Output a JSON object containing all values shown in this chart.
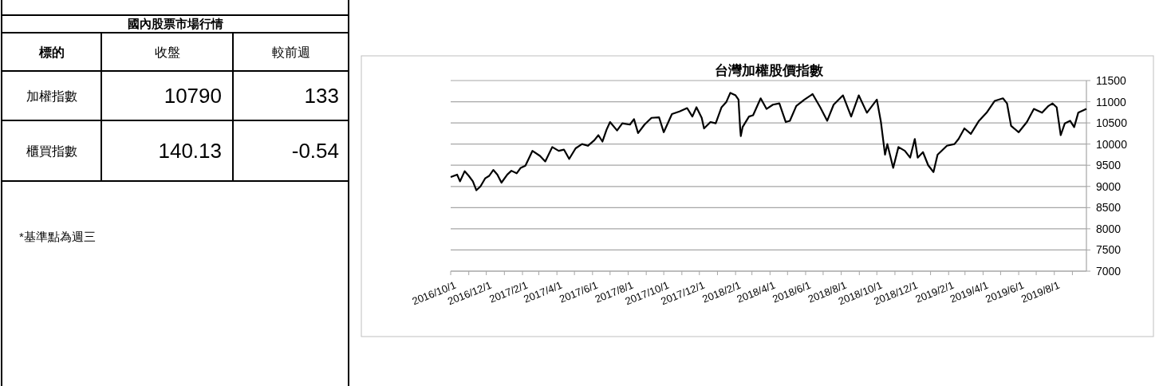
{
  "chart_data": [
    {
      "type": "other",
      "title": "國內股票市場行情",
      "annotations": [
        "標的",
        "收盤",
        "較前週",
        "加權指數",
        "10790",
        "133",
        "櫃買指數",
        "140.13",
        "-0.54",
        "*基準點為週三"
      ]
    },
    {
      "type": "line",
      "title": "台灣加權股價指數",
      "xlim": [
        "2016-10-01",
        "2019-09-25"
      ],
      "ylim": [
        7000,
        11500
      ],
      "yticks": [
        7000,
        7500,
        8000,
        8500,
        9000,
        9500,
        10000,
        10500,
        11000,
        11500
      ],
      "xticks": [
        {
          "value": "2016-10-01",
          "label": "2016/10/1"
        },
        {
          "value": "2016-11-01",
          "label": null
        },
        {
          "value": "2016-12-01",
          "label": "2016/12/1"
        },
        {
          "value": "2017-01-01",
          "label": null
        },
        {
          "value": "2017-02-01",
          "label": "2017/2/1"
        },
        {
          "value": "2017-03-01",
          "label": null
        },
        {
          "value": "2017-04-01",
          "label": "2017/4/1"
        },
        {
          "value": "2017-05-01",
          "label": null
        },
        {
          "value": "2017-06-01",
          "label": "2017/6/1"
        },
        {
          "value": "2017-07-01",
          "label": null
        },
        {
          "value": "2017-08-01",
          "label": "2017/8/1"
        },
        {
          "value": "2017-09-01",
          "label": null
        },
        {
          "value": "2017-10-01",
          "label": "2017/10/1"
        },
        {
          "value": "2017-11-01",
          "label": null
        },
        {
          "value": "2017-12-01",
          "label": "2017/12/1"
        },
        {
          "value": "2018-01-01",
          "label": null
        },
        {
          "value": "2018-02-01",
          "label": "2018/2/1"
        },
        {
          "value": "2018-03-01",
          "label": null
        },
        {
          "value": "2018-04-01",
          "label": "2018/4/1"
        },
        {
          "value": "2018-05-01",
          "label": null
        },
        {
          "value": "2018-06-01",
          "label": "2018/6/1"
        },
        {
          "value": "2018-07-01",
          "label": null
        },
        {
          "value": "2018-08-01",
          "label": "2018/8/1"
        },
        {
          "value": "2018-09-01",
          "label": null
        },
        {
          "value": "2018-10-01",
          "label": "2018/10/1"
        },
        {
          "value": "2018-11-01",
          "label": null
        },
        {
          "value": "2018-12-01",
          "label": "2018/12/1"
        },
        {
          "value": "2019-01-01",
          "label": null
        },
        {
          "value": "2019-02-01",
          "label": "2019/2/1"
        },
        {
          "value": "2019-03-01",
          "label": null
        },
        {
          "value": "2019-04-01",
          "label": "2019/4/1"
        },
        {
          "value": "2019-05-01",
          "label": null
        },
        {
          "value": "2019-06-01",
          "label": "2019/6/1"
        },
        {
          "value": "2019-07-01",
          "label": null
        },
        {
          "value": "2019-08-01",
          "label": "2019/8/1"
        },
        {
          "value": "2019-09-01",
          "label": null
        }
      ],
      "grid": "y",
      "marker": "none",
      "line_style": "solid",
      "x": [
        "2016-10-01",
        "2016-10-12",
        "2016-10-17",
        "2016-10-25",
        "2016-11-01",
        "2016-11-08",
        "2016-11-14",
        "2016-11-21",
        "2016-11-29",
        "2016-12-06",
        "2016-12-13",
        "2016-12-20",
        "2016-12-27",
        "2017-01-06",
        "2017-01-13",
        "2017-01-22",
        "2017-01-29",
        "2017-02-06",
        "2017-02-18",
        "2017-03-03",
        "2017-03-12",
        "2017-03-24",
        "2017-04-04",
        "2017-04-13",
        "2017-04-22",
        "2017-05-03",
        "2017-05-14",
        "2017-05-24",
        "2017-06-04",
        "2017-06-11",
        "2017-06-18",
        "2017-06-25",
        "2017-07-01",
        "2017-07-13",
        "2017-07-22",
        "2017-08-04",
        "2017-08-11",
        "2017-08-18",
        "2017-08-29",
        "2017-09-10",
        "2017-09-23",
        "2017-10-01",
        "2017-10-15",
        "2017-10-28",
        "2017-11-10",
        "2017-11-19",
        "2017-11-26",
        "2017-12-05",
        "2017-12-09",
        "2017-12-20",
        "2017-12-29",
        "2018-01-08",
        "2018-01-16",
        "2018-01-23",
        "2018-02-01",
        "2018-02-06",
        "2018-02-09",
        "2018-02-10",
        "2018-02-13",
        "2018-02-24",
        "2018-03-03",
        "2018-03-16",
        "2018-03-26",
        "2018-04-06",
        "2018-04-17",
        "2018-04-28",
        "2018-05-05",
        "2018-05-16",
        "2018-05-30",
        "2018-06-13",
        "2018-06-26",
        "2018-07-08",
        "2018-07-19",
        "2018-08-04",
        "2018-08-18",
        "2018-08-31",
        "2018-09-14",
        "2018-10-01",
        "2018-10-08",
        "2018-10-15",
        "2018-10-19",
        "2018-10-29",
        "2018-11-07",
        "2018-11-18",
        "2018-11-27",
        "2018-12-05",
        "2018-12-10",
        "2018-12-19",
        "2018-12-28",
        "2019-01-06",
        "2019-01-13",
        "2019-01-29",
        "2019-02-11",
        "2019-02-18",
        "2019-02-28",
        "2019-03-11",
        "2019-03-25",
        "2019-04-07",
        "2019-04-21",
        "2019-05-05",
        "2019-05-12",
        "2019-05-19",
        "2019-06-01",
        "2019-06-15",
        "2019-06-27",
        "2019-07-11",
        "2019-07-22",
        "2019-07-29",
        "2019-08-05",
        "2019-08-12",
        "2019-08-19",
        "2019-08-28",
        "2019-09-04",
        "2019-09-11",
        "2019-09-25"
      ],
      "series": [
        {
          "color": "#000000",
          "values": [
            9220,
            9280,
            9120,
            9360,
            9250,
            9120,
            8910,
            9000,
            9190,
            9250,
            9390,
            9280,
            9090,
            9280,
            9370,
            9310,
            9440,
            9490,
            9840,
            9720,
            9590,
            9930,
            9840,
            9870,
            9650,
            9900,
            10000,
            9960,
            10090,
            10210,
            10060,
            10340,
            10520,
            10320,
            10490,
            10460,
            10590,
            10260,
            10460,
            10620,
            10630,
            10280,
            10710,
            10770,
            10850,
            10650,
            10870,
            10620,
            10370,
            10520,
            10490,
            10870,
            10990,
            11210,
            11150,
            11050,
            10340,
            10190,
            10400,
            10650,
            10680,
            11080,
            10830,
            10930,
            10960,
            10520,
            10550,
            10900,
            11050,
            11180,
            10870,
            10550,
            10930,
            11150,
            10650,
            11150,
            10740,
            11050,
            10520,
            9750,
            10000,
            9440,
            9930,
            9840,
            9680,
            10120,
            9680,
            9810,
            9500,
            9340,
            9750,
            9960,
            10000,
            10120,
            10370,
            10240,
            10550,
            10740,
            11020,
            11080,
            10960,
            10430,
            10280,
            10520,
            10830,
            10740,
            10900,
            10960,
            10870,
            10210,
            10490,
            10550,
            10400,
            10740,
            10830
          ]
        }
      ]
    }
  ]
}
